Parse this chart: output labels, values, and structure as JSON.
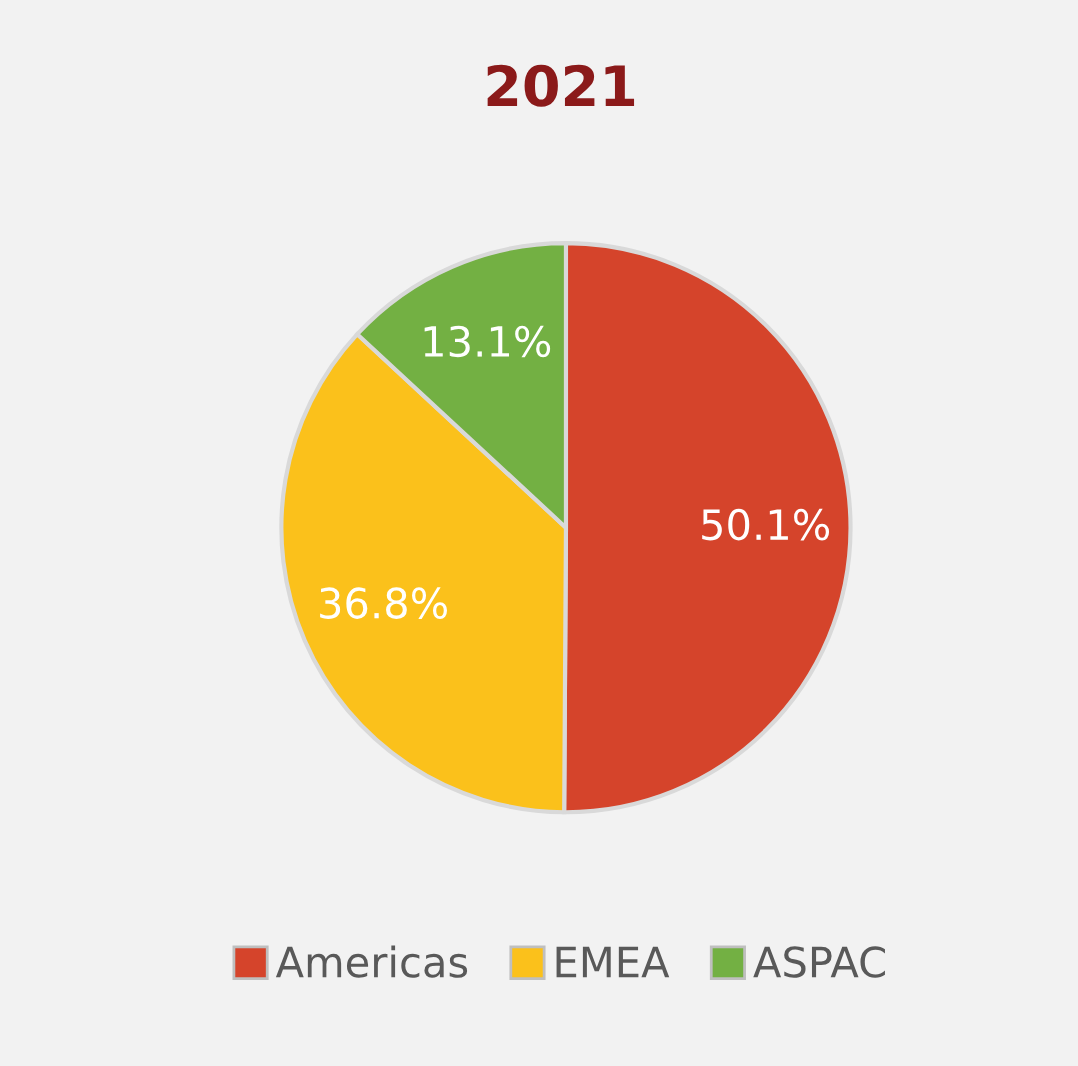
{
  "chart_data": {
    "type": "pie",
    "title": "2021",
    "categories": [
      "Americas",
      "EMEA",
      "ASPAC"
    ],
    "values": [
      50.1,
      36.8,
      13.1
    ],
    "colors": [
      "#d5442b",
      "#fbc11b",
      "#73b043"
    ],
    "value_labels": [
      "50.1%",
      "36.8%",
      "13.1%"
    ],
    "legend": "bottom"
  }
}
